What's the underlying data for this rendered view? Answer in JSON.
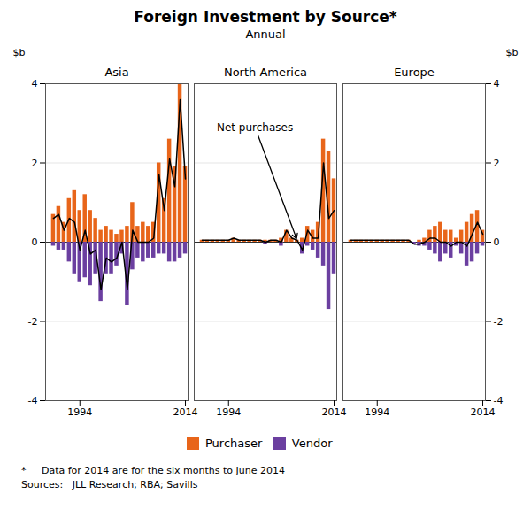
{
  "chart_data": {
    "type": "bar",
    "title": "Foreign Investment by Source*",
    "subtitle": "Annual",
    "ylabel": "$b",
    "y2label": "$b",
    "ylim": [
      -4,
      4
    ],
    "yticks": [
      -4,
      -2,
      0,
      2,
      4
    ],
    "y2lim": [
      -4,
      4
    ],
    "y2ticks": [
      -4,
      -2,
      0,
      2,
      4
    ],
    "xlim": [
      1987.5,
      2014.5
    ],
    "xticks": [
      1994,
      2014
    ],
    "grid": true,
    "legend": "bottom",
    "x": [
      1989,
      1990,
      1991,
      1992,
      1993,
      1994,
      1995,
      1996,
      1997,
      1998,
      1999,
      2000,
      2001,
      2002,
      2003,
      2004,
      2005,
      2006,
      2007,
      2008,
      2009,
      2010,
      2011,
      2012,
      2013,
      2014
    ],
    "panels": [
      {
        "title": "Asia",
        "series": [
          {
            "name": "Purchaser",
            "color": "#E8651A",
            "values": [
              0.7,
              0.9,
              0.5,
              1.1,
              1.3,
              0.8,
              1.2,
              0.8,
              0.6,
              0.3,
              0.4,
              0.3,
              0.2,
              0.3,
              0.4,
              1.0,
              0.4,
              0.5,
              0.4,
              0.5,
              2.0,
              1.1,
              2.6,
              1.9,
              4.0,
              1.9
            ]
          },
          {
            "name": "Vendor",
            "color": "#6B3FA0",
            "values": [
              -0.1,
              -0.2,
              -0.2,
              -0.5,
              -0.8,
              -1.0,
              -0.9,
              -1.1,
              -0.8,
              -1.5,
              -0.8,
              -0.8,
              -0.6,
              -0.3,
              -1.6,
              -0.7,
              -0.4,
              -0.5,
              -0.4,
              -0.4,
              -0.3,
              -0.3,
              -0.5,
              -0.5,
              -0.4,
              -0.3
            ]
          },
          {
            "type": "line",
            "color": "#000000",
            "values": [
              0.6,
              0.7,
              0.3,
              0.6,
              0.5,
              -0.2,
              0.3,
              -0.3,
              -0.2,
              -1.2,
              -0.4,
              -0.5,
              -0.4,
              0.0,
              -1.2,
              0.3,
              0.0,
              0.0,
              0.0,
              0.1,
              1.7,
              0.8,
              2.1,
              1.4,
              3.6,
              1.6
            ]
          }
        ]
      },
      {
        "title": "North America",
        "series": [
          {
            "name": "Purchaser",
            "color": "#E8651A",
            "values": [
              0.05,
              0.05,
              0.05,
              0.05,
              0.05,
              0.05,
              0.1,
              0.05,
              0.05,
              0.05,
              0.05,
              0.05,
              0.05,
              0.05,
              0.05,
              0.1,
              0.3,
              0.1,
              0.05,
              0.1,
              0.4,
              0.3,
              0.5,
              2.6,
              2.3,
              1.6
            ]
          },
          {
            "name": "Vendor",
            "color": "#6B3FA0",
            "values": [
              0.0,
              0.0,
              0.0,
              0.0,
              0.0,
              0.0,
              0.0,
              0.0,
              0.0,
              0.0,
              0.0,
              0.0,
              -0.05,
              0.0,
              0.0,
              -0.1,
              0.0,
              0.0,
              0.0,
              -0.3,
              -0.1,
              -0.2,
              -0.4,
              -0.6,
              -1.7,
              -0.8
            ]
          },
          {
            "type": "line",
            "color": "#000000",
            "values": [
              0.05,
              0.05,
              0.05,
              0.05,
              0.05,
              0.05,
              0.1,
              0.05,
              0.05,
              0.05,
              0.05,
              0.05,
              0.0,
              0.05,
              0.05,
              0.0,
              0.3,
              0.1,
              0.05,
              -0.2,
              0.3,
              0.1,
              0.1,
              2.0,
              0.6,
              0.8
            ]
          }
        ]
      },
      {
        "title": "Europe",
        "series": [
          {
            "name": "Purchaser",
            "color": "#E8651A",
            "values": [
              0.05,
              0.05,
              0.05,
              0.05,
              0.05,
              0.05,
              0.05,
              0.05,
              0.05,
              0.05,
              0.05,
              0.05,
              0.0,
              0.05,
              0.1,
              0.3,
              0.4,
              0.5,
              0.3,
              0.3,
              0.1,
              0.3,
              0.5,
              0.7,
              0.8,
              0.3
            ]
          },
          {
            "name": "Vendor",
            "color": "#6B3FA0",
            "values": [
              0.0,
              0.0,
              0.0,
              0.0,
              0.0,
              0.0,
              0.0,
              0.0,
              0.0,
              0.0,
              0.0,
              0.0,
              -0.05,
              -0.1,
              -0.1,
              -0.2,
              -0.3,
              -0.5,
              -0.3,
              -0.4,
              -0.1,
              -0.3,
              -0.6,
              -0.5,
              -0.3,
              -0.1
            ]
          },
          {
            "type": "line",
            "color": "#000000",
            "values": [
              0.05,
              0.05,
              0.05,
              0.05,
              0.05,
              0.05,
              0.05,
              0.05,
              0.05,
              0.05,
              0.05,
              0.05,
              -0.05,
              -0.05,
              0.0,
              0.1,
              0.1,
              0.0,
              0.0,
              -0.1,
              0.0,
              0.0,
              -0.1,
              0.2,
              0.5,
              0.2
            ]
          }
        ]
      }
    ],
    "annotations": [
      {
        "text": "Net purchases",
        "panel": "North America",
        "x": 2007,
        "y": 0.05
      }
    ],
    "footnote": "*     Data for 2014 are for the six months to June 2014",
    "sources": "Sources:   JLL Research; RBA; Savills"
  }
}
